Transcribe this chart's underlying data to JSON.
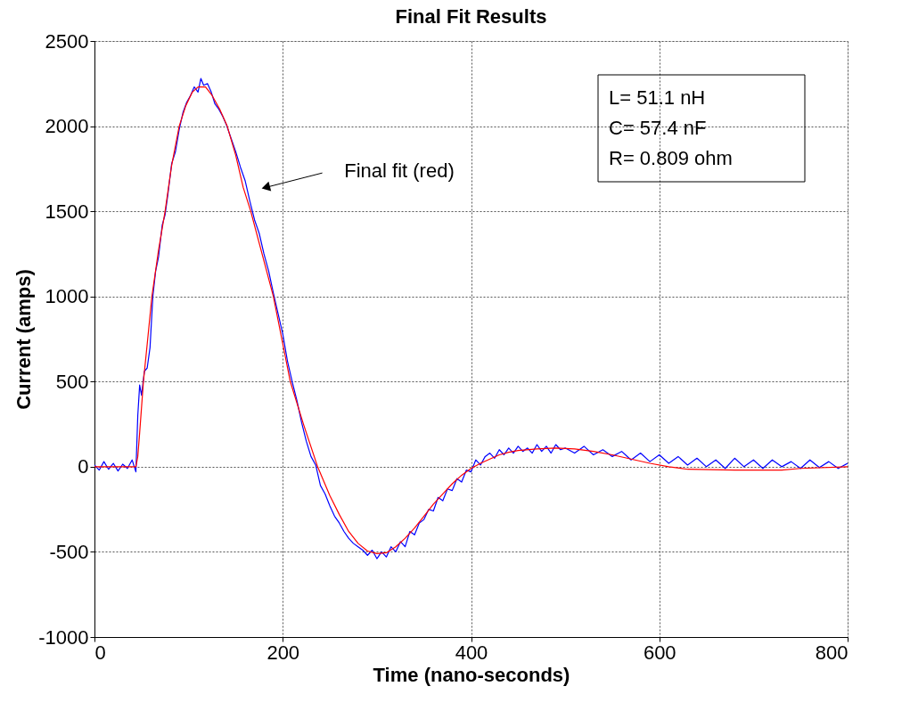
{
  "chart_data": {
    "type": "line",
    "title": "Final Fit Results",
    "xlabel": "Time (nano-seconds)",
    "ylabel": "Current (amps)",
    "xlim": [
      0,
      800
    ],
    "xticks": [
      0,
      200,
      400,
      600,
      800
    ],
    "ylim": [
      -1000,
      2500
    ],
    "yticks": [
      -1000,
      -500,
      0,
      500,
      1000,
      1500,
      2000,
      2500
    ],
    "grid": true,
    "marker": "none",
    "line_style": "solid",
    "series": [
      {
        "color": "#0000ff",
        "x": [
          0,
          5,
          10,
          15,
          20,
          25,
          30,
          35,
          40,
          44,
          46,
          48,
          50,
          53,
          56,
          59,
          62,
          65,
          68,
          72,
          75,
          78,
          82,
          86,
          90,
          94,
          98,
          102,
          106,
          110,
          113,
          116,
          120,
          124,
          128,
          132,
          136,
          140,
          145,
          150,
          155,
          160,
          165,
          170,
          175,
          180,
          185,
          190,
          195,
          200,
          205,
          210,
          215,
          220,
          225,
          230,
          235,
          240,
          245,
          250,
          255,
          260,
          265,
          270,
          275,
          280,
          285,
          290,
          295,
          300,
          305,
          310,
          315,
          320,
          325,
          330,
          335,
          340,
          345,
          350,
          355,
          360,
          365,
          370,
          375,
          380,
          385,
          390,
          395,
          400,
          405,
          410,
          415,
          420,
          425,
          430,
          435,
          440,
          445,
          450,
          455,
          460,
          465,
          470,
          475,
          480,
          485,
          490,
          495,
          500,
          510,
          520,
          530,
          540,
          550,
          560,
          570,
          580,
          590,
          600,
          610,
          620,
          630,
          640,
          650,
          660,
          670,
          680,
          690,
          700,
          710,
          720,
          730,
          740,
          750,
          760,
          770,
          780,
          790,
          800
        ],
        "values": [
          10,
          -20,
          30,
          -15,
          20,
          -25,
          15,
          -10,
          40,
          -30,
          300,
          480,
          420,
          560,
          580,
          700,
          1000,
          1150,
          1230,
          1420,
          1480,
          1600,
          1780,
          1850,
          1980,
          2080,
          2140,
          2180,
          2230,
          2200,
          2280,
          2240,
          2250,
          2200,
          2130,
          2100,
          2060,
          2010,
          1930,
          1850,
          1760,
          1680,
          1560,
          1450,
          1370,
          1250,
          1150,
          1020,
          900,
          780,
          620,
          500,
          390,
          260,
          150,
          60,
          10,
          -110,
          -160,
          -230,
          -290,
          -330,
          -380,
          -420,
          -450,
          -470,
          -490,
          -520,
          -490,
          -540,
          -500,
          -530,
          -470,
          -500,
          -440,
          -470,
          -380,
          -400,
          -330,
          -310,
          -250,
          -260,
          -180,
          -200,
          -130,
          -140,
          -70,
          -90,
          -20,
          -30,
          40,
          10,
          60,
          80,
          50,
          100,
          70,
          110,
          80,
          120,
          90,
          110,
          80,
          130,
          90,
          120,
          80,
          130,
          100,
          110,
          80,
          120,
          70,
          100,
          60,
          90,
          40,
          80,
          30,
          70,
          20,
          60,
          10,
          50,
          0,
          40,
          -10,
          50,
          0,
          40,
          -10,
          40,
          0,
          30,
          -10,
          40,
          -5,
          30,
          -10,
          20
        ]
      },
      {
        "color": "#ff0000",
        "x": [
          0,
          44,
          46,
          48,
          52,
          56,
          61,
          68,
          75,
          82,
          90,
          97,
          104,
          110,
          118,
          125,
          133,
          141,
          150,
          158,
          166,
          178,
          190,
          199,
          208,
          222,
          237,
          250,
          260,
          270,
          280,
          290,
          300,
          310,
          320,
          330,
          340,
          350,
          360,
          370,
          380,
          390,
          400,
          410,
          420,
          430,
          440,
          450,
          470,
          490,
          510,
          530,
          550,
          570,
          590,
          610,
          630,
          680,
          730,
          750,
          800
        ],
        "values": [
          0,
          0,
          60,
          200,
          500,
          720,
          1000,
          1270,
          1500,
          1770,
          2000,
          2120,
          2200,
          2230,
          2230,
          2180,
          2100,
          2000,
          1830,
          1640,
          1500,
          1250,
          1000,
          750,
          500,
          250,
          0,
          -170,
          -280,
          -380,
          -450,
          -495,
          -510,
          -505,
          -470,
          -420,
          -360,
          -290,
          -220,
          -160,
          -100,
          -50,
          -10,
          20,
          45,
          70,
          85,
          95,
          105,
          110,
          105,
          90,
          70,
          45,
          20,
          0,
          -15,
          -20,
          -20,
          -10,
          0
        ]
      }
    ],
    "annotations": [
      {
        "text": "Final fit (red)",
        "x": 182,
        "y": 1640
      },
      "L= 51.1 nH",
      "C= 57.4 nF",
      "R= 0.809 ohm"
    ]
  }
}
